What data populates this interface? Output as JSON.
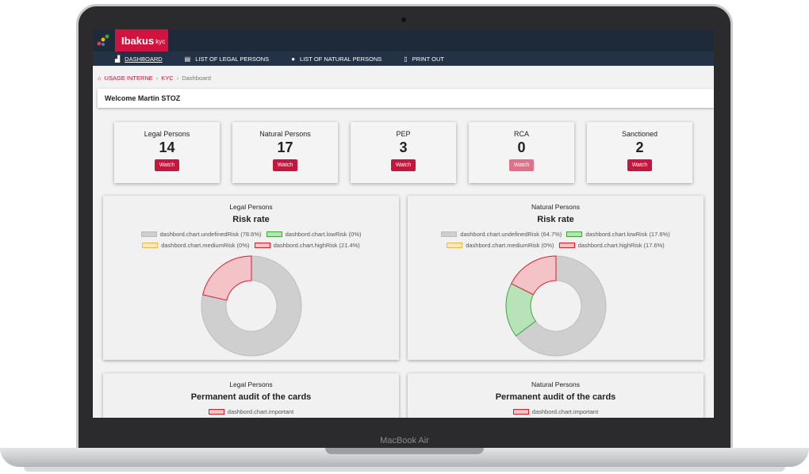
{
  "device": {
    "label": "MacBook Air"
  },
  "app": {
    "name": "Ibakus",
    "sub": "kyc"
  },
  "nav": [
    {
      "label": "DASHBOARD",
      "icon": "chart-icon",
      "glyph": "▟"
    },
    {
      "label": "LIST OF LEGAL PERSONS",
      "icon": "document-icon",
      "glyph": "▤"
    },
    {
      "label": "LIST OF NATURAL PERSONS",
      "icon": "user-icon",
      "glyph": "●"
    },
    {
      "label": "PRINT OUT",
      "icon": "file-icon",
      "glyph": "▯"
    }
  ],
  "breadcrumb": {
    "home_icon": "⌂",
    "items": [
      "USAGE INTERNE",
      "KYC"
    ],
    "current": "Dashboard",
    "sep": "›"
  },
  "welcome": "Welcome Martin STOZ",
  "stats": [
    {
      "title": "Legal Persons",
      "value": "14",
      "button": "Watch"
    },
    {
      "title": "Natural Persons",
      "value": "17",
      "button": "Watch"
    },
    {
      "title": "PEP",
      "value": "3",
      "button": "Watch"
    },
    {
      "title": "RCA",
      "value": "0",
      "button": "Watch"
    },
    {
      "title": "Sanctioned",
      "value": "2",
      "button": "Watch"
    }
  ],
  "colors": {
    "accent": "#d1143f",
    "undefined": "#cfcfcf",
    "low": "#b8e3b8",
    "high": "#f4c3c8",
    "lowStroke": "#3aa63a",
    "highStroke": "#d81f2c"
  },
  "chart_data": [
    {
      "type": "pie",
      "title": "Legal Persons",
      "subtitle": "Risk rate",
      "legend": [
        "dashbord.chart.undefinedRisk (78.6%)",
        "dashbord.chart.lowRisk (0%)",
        "dashbord.chart.mediumRisk (0%)",
        "dashbord.chart.highRisk (21.4%)"
      ],
      "categories": [
        "undefinedRisk",
        "lowRisk",
        "mediumRisk",
        "highRisk"
      ],
      "values": [
        78.6,
        0,
        0,
        21.4
      ]
    },
    {
      "type": "pie",
      "title": "Natural Persons",
      "subtitle": "Risk rate",
      "legend": [
        "dashbord.chart.undefinedRisk (64.7%)",
        "dashbord.chart.lowRisk (17.6%)",
        "dashbord.chart.mediumRisk (0%)",
        "dashbord.chart.highRisk (17.6%)"
      ],
      "categories": [
        "undefinedRisk",
        "lowRisk",
        "mediumRisk",
        "highRisk"
      ],
      "values": [
        64.7,
        17.6,
        0,
        17.6
      ]
    }
  ],
  "audit_panels": [
    {
      "title": "Legal Persons",
      "subtitle": "Permanent audit of the cards",
      "legend": "dashbord.chart.important"
    },
    {
      "title": "Natural Persons",
      "subtitle": "Permanent audit of the cards",
      "legend": "dashbord.chart.important"
    }
  ]
}
